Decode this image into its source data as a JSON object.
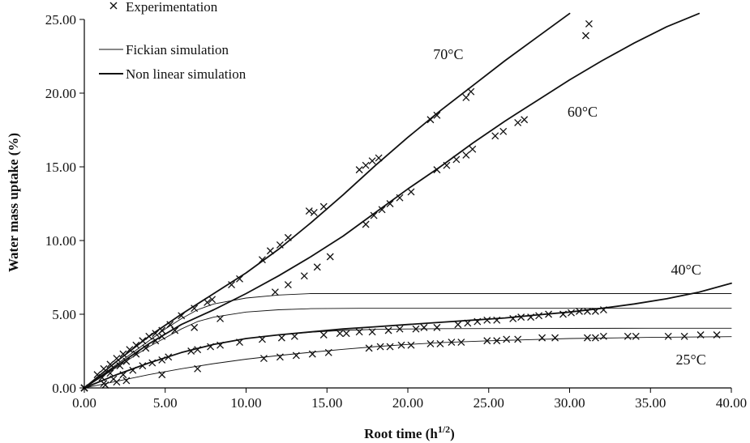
{
  "chart_data": {
    "type": "scatter",
    "title": "",
    "xlabel": "Root time (h",
    "xlabel_sup": "1/2",
    "xlabel_suffix": ")",
    "ylabel": "Water mass uptake (%)",
    "xlim": [
      0,
      40
    ],
    "ylim": [
      0,
      25
    ],
    "x_ticks": [
      "0.00",
      "5.00",
      "10.00",
      "15.00",
      "20.00",
      "25.00",
      "30.00",
      "35.00",
      "40.00"
    ],
    "y_ticks": [
      "0.00",
      "5.00",
      "10.00",
      "15.00",
      "20.00",
      "25.00"
    ],
    "grid": false,
    "legend_position": "top-left",
    "legend": [
      {
        "label": "Experimentation",
        "style": "marker"
      },
      {
        "label": "Fickian simulation",
        "style": "thin-line"
      },
      {
        "label": "Non linear simulation",
        "style": "thick-line"
      }
    ],
    "annotations": [
      {
        "text": "70°C",
        "x": 22.5,
        "y": 22.3
      },
      {
        "text": "60°C",
        "x": 30.8,
        "y": 18.4
      },
      {
        "text": "40°C",
        "x": 37.2,
        "y": 7.7
      },
      {
        "text": "25°C",
        "x": 37.5,
        "y": 1.6
      }
    ],
    "series": [
      {
        "name": "Experimentation",
        "kind": "points",
        "temperature": "70°C",
        "x": [
          0,
          0.8,
          1.2,
          1.6,
          2.0,
          2.4,
          2.8,
          3.2,
          3.6,
          4.0,
          4.4,
          4.8,
          5.3,
          6.0,
          6.8,
          7.6,
          7.9,
          9.1,
          9.6,
          11.0,
          11.5,
          12.1,
          12.6,
          13.9,
          14.2,
          14.8,
          17.0,
          17.4,
          17.8,
          18.2,
          21.4,
          21.8,
          23.6,
          23.9,
          31.0,
          31.2
        ],
        "y": [
          0,
          0.9,
          1.3,
          1.6,
          2.0,
          2.3,
          2.6,
          2.9,
          3.2,
          3.5,
          3.7,
          3.9,
          4.3,
          4.9,
          5.4,
          5.8,
          6.0,
          7.0,
          7.4,
          8.7,
          9.3,
          9.7,
          10.2,
          12.0,
          11.9,
          12.3,
          14.8,
          15.1,
          15.4,
          15.6,
          18.2,
          18.5,
          19.7,
          20.1,
          23.9,
          24.7
        ]
      },
      {
        "name": "Experimentation",
        "kind": "points",
        "temperature": "60°C",
        "x": [
          0,
          1.1,
          1.6,
          2.2,
          2.6,
          3.2,
          3.8,
          4.4,
          4.8,
          5.6,
          6.8,
          8.4,
          11.8,
          12.6,
          13.6,
          14.4,
          15.2,
          17.4,
          17.9,
          18.4,
          18.9,
          19.5,
          20.2,
          21.8,
          22.4,
          23.0,
          23.6,
          24.0,
          25.4,
          25.9,
          26.8,
          27.2
        ],
        "y": [
          0,
          0.7,
          1.0,
          1.5,
          1.8,
          2.3,
          2.7,
          3.2,
          3.5,
          3.9,
          4.1,
          4.7,
          6.5,
          7.0,
          7.6,
          8.2,
          8.9,
          11.1,
          11.7,
          12.1,
          12.5,
          12.9,
          13.3,
          14.8,
          15.1,
          15.5,
          15.8,
          16.2,
          17.1,
          17.4,
          18.0,
          18.2
        ]
      },
      {
        "name": "Experimentation",
        "kind": "points",
        "temperature": "40°C",
        "x": [
          0,
          1.2,
          1.8,
          2.4,
          3.0,
          3.6,
          4.2,
          4.8,
          5.2,
          6.6,
          7.0,
          7.8,
          8.4,
          9.6,
          11.0,
          12.2,
          13.0,
          14.8,
          15.8,
          16.2,
          17.0,
          17.8,
          18.8,
          19.5,
          20.5,
          21.0,
          21.8,
          23.1,
          23.7,
          24.3,
          24.9,
          25.5,
          26.5,
          27.0,
          27.6,
          28.1,
          28.7,
          29.6,
          30.1,
          30.6,
          31.1,
          31.6,
          32.1
        ],
        "y": [
          0,
          0.3,
          0.6,
          0.9,
          1.2,
          1.5,
          1.7,
          1.9,
          2.1,
          2.5,
          2.6,
          2.8,
          2.9,
          3.1,
          3.3,
          3.4,
          3.5,
          3.6,
          3.7,
          3.7,
          3.8,
          3.8,
          3.9,
          4.0,
          4.0,
          4.1,
          4.1,
          4.3,
          4.4,
          4.5,
          4.6,
          4.6,
          4.7,
          4.8,
          4.8,
          4.9,
          5.0,
          5.0,
          5.1,
          5.2,
          5.2,
          5.2,
          5.3
        ]
      },
      {
        "name": "Experimentation",
        "kind": "points",
        "temperature": "25°C",
        "x": [
          0,
          1.3,
          2.0,
          2.6,
          4.8,
          7.0,
          11.1,
          12.1,
          13.1,
          14.1,
          15.1,
          17.6,
          18.3,
          18.9,
          19.6,
          20.2,
          21.4,
          22.0,
          22.7,
          23.3,
          24.9,
          25.5,
          26.1,
          26.8,
          28.3,
          29.1,
          31.1,
          31.6,
          32.1,
          33.6,
          34.1,
          36.1,
          37.1,
          38.1,
          39.1
        ],
        "y": [
          0,
          0.2,
          0.4,
          0.5,
          0.9,
          1.3,
          2.0,
          2.1,
          2.2,
          2.3,
          2.4,
          2.7,
          2.8,
          2.8,
          2.9,
          2.9,
          3.0,
          3.0,
          3.1,
          3.1,
          3.2,
          3.2,
          3.3,
          3.3,
          3.4,
          3.4,
          3.4,
          3.4,
          3.5,
          3.5,
          3.5,
          3.5,
          3.5,
          3.6,
          3.6
        ]
      },
      {
        "name": "Fickian simulation",
        "kind": "thin-line",
        "temperature": "70°C",
        "x": [
          0,
          1,
          2,
          3,
          4,
          5,
          6,
          7,
          8,
          10,
          12,
          14,
          17,
          20,
          25,
          30,
          35,
          40
        ],
        "y": [
          0,
          0.8,
          1.6,
          2.4,
          3.2,
          4.0,
          4.7,
          5.3,
          5.7,
          6.1,
          6.3,
          6.4,
          6.4,
          6.4,
          6.4,
          6.4,
          6.4,
          6.4
        ]
      },
      {
        "name": "Fickian simulation",
        "kind": "thin-line",
        "temperature": "60°C",
        "x": [
          0,
          1,
          2,
          3,
          4,
          5,
          6,
          7,
          8,
          10,
          12,
          14,
          17,
          20,
          25,
          30,
          35,
          40
        ],
        "y": [
          0,
          0.7,
          1.4,
          2.1,
          2.8,
          3.4,
          4.0,
          4.5,
          4.8,
          5.15,
          5.3,
          5.38,
          5.4,
          5.4,
          5.4,
          5.4,
          5.4,
          5.4
        ]
      },
      {
        "name": "Fickian simulation",
        "kind": "thin-line",
        "temperature": "40°C",
        "x": [
          0,
          2,
          4,
          6,
          8,
          10,
          12,
          14,
          16,
          18,
          20,
          22,
          25,
          30,
          35,
          40
        ],
        "y": [
          0,
          0.9,
          1.7,
          2.4,
          2.95,
          3.35,
          3.6,
          3.78,
          3.9,
          3.97,
          4.0,
          4.02,
          4.03,
          4.04,
          4.05,
          4.05
        ]
      },
      {
        "name": "Fickian simulation",
        "kind": "thin-line",
        "temperature": "25°C",
        "x": [
          0,
          2,
          4,
          6,
          8,
          10,
          12,
          14,
          16,
          18,
          20,
          22,
          25,
          30,
          35,
          40
        ],
        "y": [
          0,
          0.45,
          0.9,
          1.3,
          1.65,
          1.95,
          2.2,
          2.42,
          2.62,
          2.8,
          2.95,
          3.07,
          3.2,
          3.35,
          3.43,
          3.48
        ]
      },
      {
        "name": "Non linear simulation",
        "kind": "thick-line",
        "temperature": "70°C",
        "x": [
          0,
          2,
          4,
          6,
          8,
          10,
          12,
          14,
          16,
          18,
          20,
          22,
          24,
          26,
          28,
          30
        ],
        "y": [
          0,
          1.8,
          3.5,
          5.0,
          6.4,
          7.8,
          9.4,
          11.2,
          13.1,
          15.1,
          17.0,
          18.8,
          20.5,
          22.2,
          23.8,
          25.4
        ]
      },
      {
        "name": "Non linear simulation",
        "kind": "thick-line",
        "temperature": "60°C",
        "x": [
          0,
          2,
          4,
          6,
          8,
          10,
          12,
          14,
          16,
          18,
          20,
          22,
          24,
          26,
          28,
          30,
          32,
          34,
          36,
          38
        ],
        "y": [
          0,
          1.5,
          3.0,
          4.3,
          5.3,
          6.4,
          7.6,
          8.9,
          10.3,
          11.9,
          13.5,
          15.0,
          16.6,
          18.1,
          19.5,
          20.9,
          22.2,
          23.4,
          24.5,
          25.4
        ]
      },
      {
        "name": "Non linear simulation",
        "kind": "thick-line",
        "temperature": "40°C",
        "x": [
          0,
          2,
          4,
          6,
          8,
          10,
          12,
          14,
          16,
          18,
          20,
          22,
          24,
          26,
          28,
          30,
          32,
          34,
          36,
          38,
          40
        ],
        "y": [
          0,
          0.9,
          1.7,
          2.4,
          2.95,
          3.35,
          3.6,
          3.8,
          4.0,
          4.15,
          4.3,
          4.45,
          4.6,
          4.75,
          4.95,
          5.15,
          5.4,
          5.7,
          6.05,
          6.5,
          7.1
        ]
      }
    ]
  }
}
